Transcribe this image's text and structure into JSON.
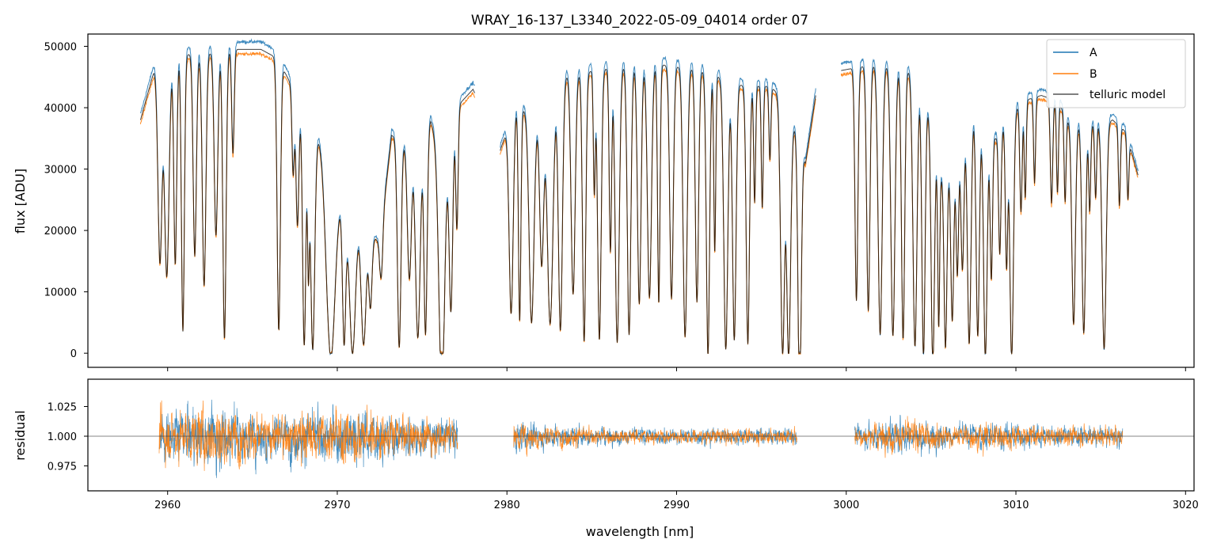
{
  "chart_data": [
    {
      "panel": "top",
      "type": "line",
      "title": "WRAY_16-137_L3340_2022-05-09_04014  order 07",
      "xlabel": "",
      "ylabel": "flux [ADU]",
      "xlim": [
        2955.3,
        3020.5
      ],
      "ylim": [
        -2300,
        52000
      ],
      "yticks": [
        0,
        10000,
        20000,
        30000,
        40000,
        50000
      ],
      "ytick_labels": [
        "0",
        "10000",
        "20000",
        "30000",
        "40000",
        "50000"
      ],
      "legend": {
        "placement": "top-right",
        "entries": [
          "A",
          "B",
          "telluric model"
        ]
      },
      "colors": {
        "A": "#1f77b4",
        "B": "#ff7f0e",
        "model": "#000000"
      },
      "continuum": [
        [
          2958.4,
          38000
        ],
        [
          2959.2,
          46000
        ],
        [
          2960.5,
          48500
        ],
        [
          2962.5,
          49000
        ],
        [
          2964.0,
          49500
        ],
        [
          2965.5,
          49500
        ],
        [
          2966.5,
          48000
        ],
        [
          2967.6,
          42000
        ],
        [
          2968.4,
          37000
        ],
        [
          2969.5,
          33500
        ],
        [
          2970.6,
          21000
        ],
        [
          2971.3,
          21000
        ],
        [
          2972.5,
          18000
        ],
        [
          2973.2,
          35500
        ],
        [
          2974.3,
          34000
        ],
        [
          2975.5,
          38000
        ],
        [
          2976.3,
          30000
        ],
        [
          2977.0,
          40000
        ],
        [
          2978.0,
          43000
        ],
        [
          2979.6,
          33000
        ],
        [
          2980.5,
          40500
        ],
        [
          2981.7,
          38500
        ],
        [
          2982.8,
          44000
        ],
        [
          2983.6,
          45500
        ],
        [
          2985.2,
          46000
        ],
        [
          2987.0,
          47000
        ],
        [
          2989.0,
          47000
        ],
        [
          2991.0,
          46500
        ],
        [
          2992.5,
          45000
        ],
        [
          2994.0,
          43500
        ],
        [
          2995.5,
          43500
        ],
        [
          2996.5,
          41000
        ],
        [
          2997.6,
          31000
        ],
        [
          2998.2,
          42000
        ],
        [
          2999.6,
          46000
        ],
        [
          3001.5,
          47000
        ],
        [
          3002.5,
          47000
        ],
        [
          3003.7,
          46000
        ],
        [
          3004.5,
          44000
        ],
        [
          3005.6,
          29000
        ],
        [
          3006.5,
          32000
        ],
        [
          3007.3,
          40000
        ],
        [
          3008.0,
          38000
        ],
        [
          3008.8,
          35000
        ],
        [
          3009.5,
          38000
        ],
        [
          3010.3,
          41000
        ],
        [
          3011.5,
          42000
        ],
        [
          3012.5,
          41000
        ],
        [
          3013.0,
          38000
        ],
        [
          3014.3,
          37000
        ],
        [
          3015.7,
          38000
        ],
        [
          3016.5,
          36000
        ],
        [
          3017.2,
          29000
        ]
      ],
      "lines": [
        [
          2959.55,
          32000,
          0.25
        ],
        [
          2959.95,
          35000,
          0.28
        ],
        [
          2960.45,
          34000,
          0.18
        ],
        [
          2960.9,
          45000,
          0.18
        ],
        [
          2961.6,
          33000,
          0.2
        ],
        [
          2962.15,
          38000,
          0.22
        ],
        [
          2962.85,
          30000,
          0.22
        ],
        [
          2963.35,
          47000,
          0.2
        ],
        [
          2963.85,
          17000,
          0.15
        ],
        [
          2966.55,
          44000,
          0.2
        ],
        [
          2967.4,
          14000,
          0.15
        ],
        [
          2967.65,
          21000,
          0.18
        ],
        [
          2968.05,
          38000,
          0.2
        ],
        [
          2968.3,
          25000,
          0.12
        ],
        [
          2968.55,
          36000,
          0.25
        ],
        [
          2969.6,
          33000,
          0.55
        ],
        [
          2970.4,
          22000,
          0.2
        ],
        [
          2970.9,
          21000,
          0.35
        ],
        [
          2971.55,
          19000,
          0.3
        ],
        [
          2971.95,
          12000,
          0.2
        ],
        [
          2972.6,
          8000,
          0.18
        ],
        [
          2973.65,
          34000,
          0.22
        ],
        [
          2974.25,
          22000,
          0.25
        ],
        [
          2974.75,
          33000,
          0.3
        ],
        [
          2975.2,
          34000,
          0.2
        ],
        [
          2976.15,
          37000,
          0.35
        ],
        [
          2976.7,
          29000,
          0.22
        ],
        [
          2977.05,
          20000,
          0.15
        ],
        [
          2980.25,
          32000,
          0.25
        ],
        [
          2980.75,
          35000,
          0.15
        ],
        [
          2981.45,
          34000,
          0.3
        ],
        [
          2982.05,
          26000,
          0.25
        ],
        [
          2982.55,
          38000,
          0.35
        ],
        [
          2983.15,
          41000,
          0.25
        ],
        [
          2983.9,
          36000,
          0.25
        ],
        [
          2984.55,
          44000,
          0.2
        ],
        [
          2985.15,
          20000,
          0.12
        ],
        [
          2985.45,
          44000,
          0.22
        ],
        [
          2986.1,
          30000,
          0.15
        ],
        [
          2986.5,
          45000,
          0.25
        ],
        [
          2987.2,
          44000,
          0.22
        ],
        [
          2987.8,
          39000,
          0.22
        ],
        [
          2988.4,
          38000,
          0.25
        ],
        [
          2988.95,
          39000,
          0.15
        ],
        [
          2989.7,
          38000,
          0.22
        ],
        [
          2990.5,
          44000,
          0.25
        ],
        [
          2991.2,
          38000,
          0.2
        ],
        [
          2991.85,
          46000,
          0.2
        ],
        [
          2992.25,
          29000,
          0.12
        ],
        [
          2992.9,
          44000,
          0.25
        ],
        [
          2993.4,
          42000,
          0.22
        ],
        [
          2994.2,
          42000,
          0.2
        ],
        [
          2994.6,
          19000,
          0.12
        ],
        [
          2995.05,
          20000,
          0.12
        ],
        [
          2995.5,
          12000,
          0.12
        ],
        [
          2996.25,
          42000,
          0.25
        ],
        [
          2996.6,
          41000,
          0.25
        ],
        [
          2997.25,
          42000,
          0.2
        ],
        [
          3000.6,
          38000,
          0.18
        ],
        [
          3001.3,
          40000,
          0.2
        ],
        [
          3002.0,
          44000,
          0.25
        ],
        [
          3002.75,
          44000,
          0.25
        ],
        [
          3003.35,
          44000,
          0.2
        ],
        [
          3004.05,
          44000,
          0.25
        ],
        [
          3004.55,
          44000,
          0.2
        ],
        [
          3005.1,
          38000,
          0.2
        ],
        [
          3005.45,
          27000,
          0.12
        ],
        [
          3005.85,
          29000,
          0.18
        ],
        [
          3006.25,
          26000,
          0.18
        ],
        [
          3006.55,
          20000,
          0.15
        ],
        [
          3006.85,
          22000,
          0.18
        ],
        [
          3007.25,
          38000,
          0.22
        ],
        [
          3007.75,
          36000,
          0.2
        ],
        [
          3008.2,
          38000,
          0.22
        ],
        [
          3008.55,
          24000,
          0.15
        ],
        [
          3009.05,
          20000,
          0.15
        ],
        [
          3009.45,
          24000,
          0.15
        ],
        [
          3009.75,
          40000,
          0.22
        ],
        [
          3010.3,
          18000,
          0.15
        ],
        [
          3010.55,
          16000,
          0.12
        ],
        [
          3011.1,
          14000,
          0.12
        ],
        [
          3012.1,
          17000,
          0.15
        ],
        [
          3012.45,
          15000,
          0.12
        ],
        [
          3012.9,
          14000,
          0.12
        ],
        [
          3013.4,
          33000,
          0.22
        ],
        [
          3014.0,
          34000,
          0.22
        ],
        [
          3014.35,
          14000,
          0.12
        ],
        [
          3014.7,
          12000,
          0.12
        ],
        [
          3015.2,
          37000,
          0.25
        ],
        [
          3016.1,
          13000,
          0.12
        ],
        [
          3016.6,
          10000,
          0.12
        ]
      ],
      "gap_edges": [
        2958.4,
        2978.1,
        2979.6,
        2998.2,
        2999.7,
        3017.2
      ],
      "edge_features": [
        [
          2978.0,
          44000
        ],
        [
          2979.7,
          31000
        ],
        [
          2998.1,
          42000
        ],
        [
          2999.8,
          45000
        ],
        [
          3017.1,
          25500
        ]
      ]
    },
    {
      "panel": "bottom",
      "type": "line",
      "xlabel": "wavelength [nm]",
      "ylabel": "residual",
      "xlim": [
        2955.3,
        3020.5
      ],
      "ylim": [
        0.954,
        1.048
      ],
      "yticks": [
        0.975,
        1.0,
        1.025
      ],
      "ytick_labels": [
        "0.975",
        "1.000",
        "1.025"
      ],
      "xticks": [
        2960,
        2970,
        2980,
        2990,
        3000,
        3010,
        3020
      ],
      "xtick_labels": [
        "2960",
        "2970",
        "2980",
        "2990",
        "3000",
        "3010",
        "3020"
      ],
      "reference_line": 1.0,
      "segments": [
        [
          2959.5,
          2977.1
        ],
        [
          2980.4,
          2997.1
        ],
        [
          3000.5,
          3016.3
        ]
      ],
      "noise_amplitude": [
        [
          2959.5,
          0.03
        ],
        [
          2963.0,
          0.04
        ],
        [
          2965.0,
          0.03
        ],
        [
          2968.0,
          0.03
        ],
        [
          2971.0,
          0.035
        ],
        [
          2974.0,
          0.025
        ],
        [
          2977.1,
          0.02
        ],
        [
          2980.4,
          0.02
        ],
        [
          2982.0,
          0.015
        ],
        [
          2986.0,
          0.01
        ],
        [
          2990.0,
          0.009
        ],
        [
          2994.0,
          0.01
        ],
        [
          2997.1,
          0.01
        ],
        [
          3000.5,
          0.012
        ],
        [
          3003.5,
          0.022
        ],
        [
          3006.0,
          0.013
        ],
        [
          3009.0,
          0.018
        ],
        [
          3012.0,
          0.012
        ],
        [
          3016.3,
          0.012
        ]
      ]
    }
  ]
}
